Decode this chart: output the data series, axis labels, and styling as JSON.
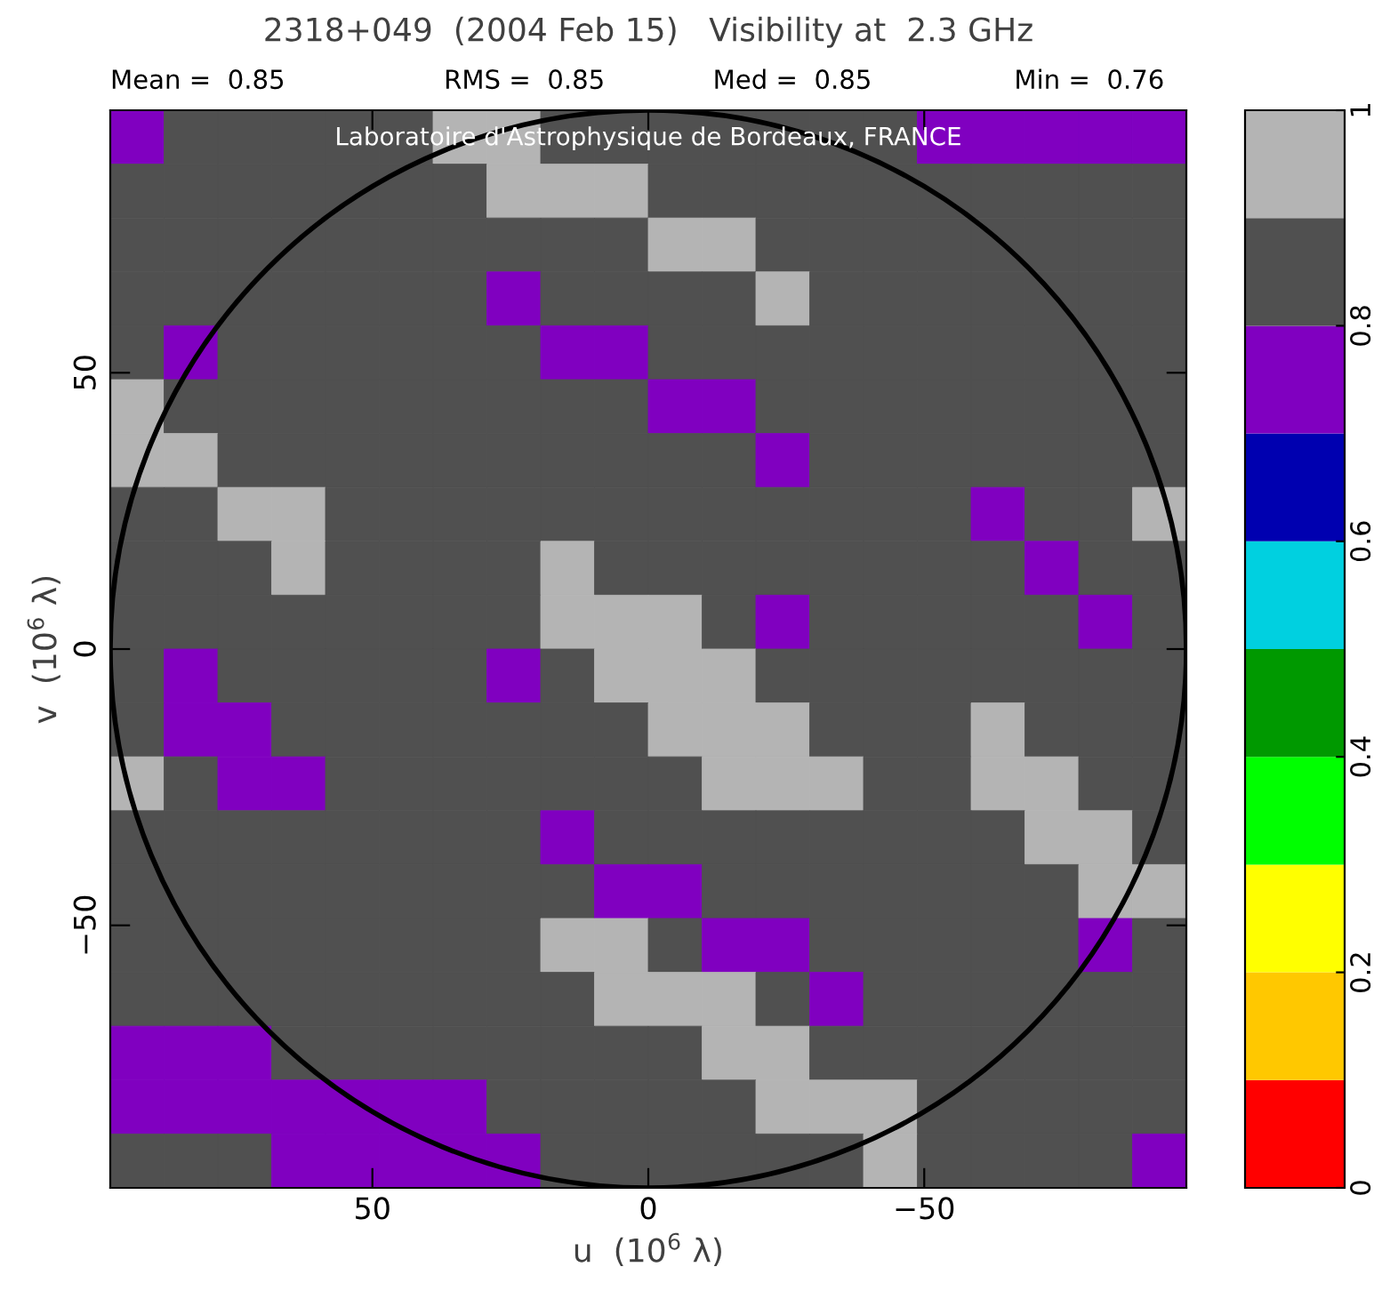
{
  "chart_data": {
    "type": "heatmap",
    "title": "2318+049  (2004 Feb 15)   Visibility at  2.3 GHz",
    "xlabel": "u  (10$^{6}$ λ)",
    "ylabel": "v  (10$^{6}$ λ)",
    "annotations": [
      "Mean =  0.85",
      "RMS =  0.85",
      "Med =  0.85",
      "Min =  0.76",
      "Laboratoire d'Astrophysique de Bordeaux, FRANCE"
    ],
    "xlim": [
      97.5,
      -97.5
    ],
    "xticks": [
      50,
      0,
      {
        "value": -50,
        "label": "−50"
      }
    ],
    "ylim": [
      -97.5,
      97.5
    ],
    "yticks": [
      {
        "value": -50,
        "label": "−50"
      },
      0,
      50
    ],
    "clim": [
      0,
      1
    ],
    "cticks": [
      0,
      0.2,
      0.4,
      0.6,
      0.8,
      1
    ],
    "colors": [
      "#ff0000",
      "#ffc800",
      "#ffff00",
      "#00ff00",
      "#009900",
      "#00d0e0",
      "#0000b0",
      "#8000c0",
      "#505050",
      "#b4b4b4"
    ],
    "cells": [
      [
        0.75,
        0.85,
        0.85,
        0.85,
        0.85,
        0.85,
        0.95,
        0.95,
        0.85,
        0.85,
        0.85,
        0.85,
        0.85,
        0.85,
        0.85,
        0.75,
        0.75,
        0.75,
        0.75,
        0.75
      ],
      [
        0.85,
        0.85,
        0.85,
        0.85,
        0.85,
        0.85,
        0.85,
        0.95,
        0.95,
        0.95,
        0.85,
        0.85,
        0.85,
        0.85,
        0.85,
        0.85,
        0.85,
        0.85,
        0.85,
        0.85
      ],
      [
        0.85,
        0.85,
        0.85,
        0.85,
        0.85,
        0.85,
        0.85,
        0.85,
        0.85,
        0.85,
        0.95,
        0.95,
        0.85,
        0.85,
        0.85,
        0.85,
        0.85,
        0.85,
        0.85,
        0.85
      ],
      [
        0.85,
        0.85,
        0.85,
        0.85,
        0.85,
        0.85,
        0.85,
        0.75,
        0.85,
        0.85,
        0.85,
        0.85,
        0.95,
        0.85,
        0.85,
        0.85,
        0.85,
        0.85,
        0.85,
        0.85
      ],
      [
        0.85,
        0.75,
        0.85,
        0.85,
        0.85,
        0.85,
        0.85,
        0.85,
        0.75,
        0.75,
        0.85,
        0.85,
        0.85,
        0.85,
        0.85,
        0.85,
        0.85,
        0.85,
        0.85,
        0.85
      ],
      [
        0.95,
        0.85,
        0.85,
        0.85,
        0.85,
        0.85,
        0.85,
        0.85,
        0.85,
        0.85,
        0.75,
        0.75,
        0.85,
        0.85,
        0.85,
        0.85,
        0.85,
        0.85,
        0.85,
        0.85
      ],
      [
        0.95,
        0.95,
        0.85,
        0.85,
        0.85,
        0.85,
        0.85,
        0.85,
        0.85,
        0.85,
        0.85,
        0.85,
        0.75,
        0.85,
        0.85,
        0.85,
        0.85,
        0.85,
        0.85,
        0.85
      ],
      [
        0.85,
        0.85,
        0.95,
        0.95,
        0.85,
        0.85,
        0.85,
        0.85,
        0.85,
        0.85,
        0.85,
        0.85,
        0.85,
        0.85,
        0.85,
        0.85,
        0.75,
        0.85,
        0.85,
        0.95
      ],
      [
        0.85,
        0.85,
        0.85,
        0.95,
        0.85,
        0.85,
        0.85,
        0.85,
        0.95,
        0.85,
        0.85,
        0.85,
        0.85,
        0.85,
        0.85,
        0.85,
        0.85,
        0.75,
        0.85,
        0.85
      ],
      [
        0.85,
        0.85,
        0.85,
        0.85,
        0.85,
        0.85,
        0.85,
        0.85,
        0.95,
        0.95,
        0.95,
        0.85,
        0.75,
        0.85,
        0.85,
        0.85,
        0.85,
        0.85,
        0.75,
        0.85
      ],
      [
        0.85,
        0.75,
        0.85,
        0.85,
        0.85,
        0.85,
        0.85,
        0.75,
        0.85,
        0.95,
        0.95,
        0.95,
        0.85,
        0.85,
        0.85,
        0.85,
        0.85,
        0.85,
        0.85,
        0.85
      ],
      [
        0.85,
        0.75,
        0.75,
        0.85,
        0.85,
        0.85,
        0.85,
        0.85,
        0.85,
        0.85,
        0.95,
        0.95,
        0.95,
        0.85,
        0.85,
        0.85,
        0.95,
        0.85,
        0.85,
        0.85
      ],
      [
        0.95,
        0.85,
        0.75,
        0.75,
        0.85,
        0.85,
        0.85,
        0.85,
        0.85,
        0.85,
        0.85,
        0.95,
        0.95,
        0.95,
        0.85,
        0.85,
        0.95,
        0.95,
        0.85,
        0.85
      ],
      [
        0.85,
        0.85,
        0.85,
        0.85,
        0.85,
        0.85,
        0.85,
        0.85,
        0.75,
        0.85,
        0.85,
        0.85,
        0.85,
        0.85,
        0.85,
        0.85,
        0.85,
        0.95,
        0.95,
        0.85
      ],
      [
        0.85,
        0.85,
        0.85,
        0.85,
        0.85,
        0.85,
        0.85,
        0.85,
        0.85,
        0.75,
        0.75,
        0.85,
        0.85,
        0.85,
        0.85,
        0.85,
        0.85,
        0.85,
        0.95,
        0.95
      ],
      [
        0.85,
        0.85,
        0.85,
        0.85,
        0.85,
        0.85,
        0.85,
        0.85,
        0.95,
        0.95,
        0.85,
        0.75,
        0.75,
        0.85,
        0.85,
        0.85,
        0.85,
        0.85,
        0.75,
        0.85
      ],
      [
        0.85,
        0.85,
        0.85,
        0.85,
        0.85,
        0.85,
        0.85,
        0.85,
        0.85,
        0.95,
        0.95,
        0.95,
        0.85,
        0.75,
        0.85,
        0.85,
        0.85,
        0.85,
        0.85,
        0.85
      ],
      [
        0.75,
        0.75,
        0.75,
        0.85,
        0.85,
        0.85,
        0.85,
        0.85,
        0.85,
        0.85,
        0.85,
        0.95,
        0.95,
        0.85,
        0.85,
        0.85,
        0.85,
        0.85,
        0.85,
        0.85
      ],
      [
        0.75,
        0.75,
        0.75,
        0.75,
        0.75,
        0.75,
        0.75,
        0.85,
        0.85,
        0.85,
        0.85,
        0.85,
        0.95,
        0.95,
        0.95,
        0.85,
        0.85,
        0.85,
        0.85,
        0.85
      ],
      [
        0.85,
        0.85,
        0.85,
        0.75,
        0.75,
        0.75,
        0.75,
        0.75,
        0.85,
        0.85,
        0.85,
        0.85,
        0.85,
        0.85,
        0.95,
        0.85,
        0.85,
        0.85,
        0.85,
        0.75
      ]
    ]
  }
}
